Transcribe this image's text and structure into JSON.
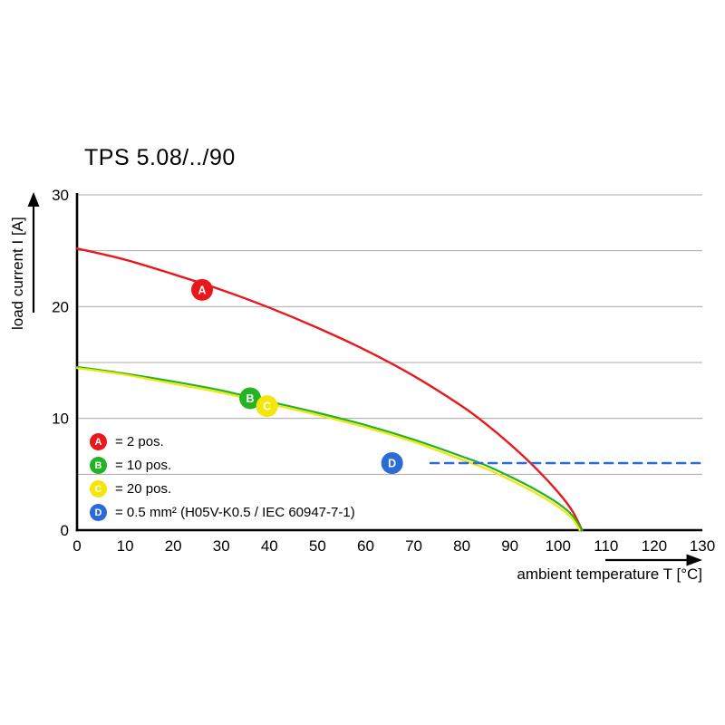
{
  "title": "TPS 5.08/../90",
  "chart_data": {
    "type": "line",
    "title": "TPS 5.08/../90",
    "xlabel": "ambient temperature T [°C]",
    "ylabel": "load current I [A]",
    "xlim": [
      0,
      130
    ],
    "ylim": [
      0,
      30
    ],
    "x_ticks": [
      0,
      10,
      20,
      30,
      40,
      50,
      60,
      70,
      80,
      90,
      100,
      110,
      120,
      130
    ],
    "y_ticks": [
      0,
      10,
      20,
      30
    ],
    "y_gridlines": [
      5,
      10,
      15,
      20,
      25,
      30
    ],
    "grid": "horizontal-only",
    "legend_position": "inside-lower-left",
    "colors": {
      "grid": "#a8a8a8",
      "axis": "#000000",
      "text": "#000000",
      "marker_letter": "#ffffff"
    },
    "series": [
      {
        "id": "A",
        "label": "= 2 pos.",
        "color": "#e8191c",
        "line_style": "solid",
        "width": 2.4,
        "points": [
          [
            0,
            25.2
          ],
          [
            10,
            24.2
          ],
          [
            20,
            22.9
          ],
          [
            30,
            21.5
          ],
          [
            40,
            19.9
          ],
          [
            50,
            18.1
          ],
          [
            60,
            16.1
          ],
          [
            70,
            13.8
          ],
          [
            80,
            11.1
          ],
          [
            85,
            9.5
          ],
          [
            90,
            7.7
          ],
          [
            95,
            5.7
          ],
          [
            100,
            3.4
          ],
          [
            103,
            1.7
          ],
          [
            105,
            0
          ]
        ],
        "marker": {
          "x": 26,
          "y": 21.5
        }
      },
      {
        "id": "B",
        "label": "= 10 pos.",
        "color": "#22b424",
        "line_style": "solid",
        "width": 2.2,
        "points": [
          [
            0,
            14.6
          ],
          [
            10,
            14.0
          ],
          [
            20,
            13.3
          ],
          [
            30,
            12.5
          ],
          [
            40,
            11.5
          ],
          [
            50,
            10.5
          ],
          [
            60,
            9.4
          ],
          [
            70,
            8.1
          ],
          [
            80,
            6.6
          ],
          [
            85,
            5.8
          ],
          [
            90,
            4.8
          ],
          [
            95,
            3.7
          ],
          [
            100,
            2.4
          ],
          [
            103,
            1.3
          ],
          [
            105,
            0
          ]
        ],
        "marker": {
          "x": 36,
          "y": 11.8
        }
      },
      {
        "id": "C",
        "label": "= 20 pos.",
        "color": "#f4e60a",
        "line_style": "solid",
        "width": 2.2,
        "points": [
          [
            0,
            14.5
          ],
          [
            10,
            13.9
          ],
          [
            20,
            13.1
          ],
          [
            30,
            12.3
          ],
          [
            40,
            11.3
          ],
          [
            50,
            10.3
          ],
          [
            60,
            9.2
          ],
          [
            70,
            7.9
          ],
          [
            80,
            6.3
          ],
          [
            85,
            5.5
          ],
          [
            90,
            4.5
          ],
          [
            95,
            3.4
          ],
          [
            100,
            2.1
          ],
          [
            103,
            1.0
          ],
          [
            104.5,
            0
          ]
        ],
        "marker": {
          "x": 39.5,
          "y": 11.1
        }
      },
      {
        "id": "D",
        "label": "= 0.5 mm² (H05V-K0.5 / IEC 60947-7-1)",
        "color": "#2a6bd8",
        "line_style": "dashed",
        "dash": "9 7",
        "width": 2.6,
        "points": [
          [
            73.5,
            6
          ],
          [
            130,
            6
          ]
        ],
        "marker": {
          "x": 65.5,
          "y": 6.0
        }
      }
    ]
  }
}
